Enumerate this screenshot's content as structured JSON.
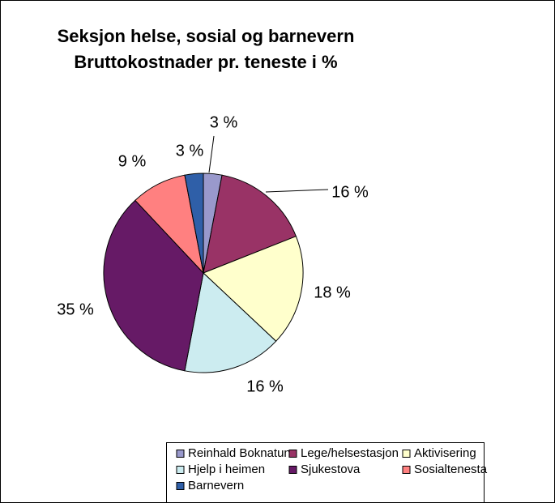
{
  "chart_data": {
    "type": "pie",
    "title": "Seksjon helse, sosial og barnevern",
    "subtitle": "Bruttokostnader pr. teneste i %",
    "categories": [
      "Reinhald Boknatun",
      "Lege/helsestasjon",
      "Aktivisering",
      "Hjelp i heimen",
      "Sjukestova",
      "Sosialtenesta",
      "Barnevern"
    ],
    "values": [
      3,
      16,
      18,
      16,
      35,
      9,
      3
    ],
    "value_labels": [
      "3 %",
      "16 %",
      "18 %",
      "16 %",
      "35 %",
      "9 %",
      "3 %"
    ],
    "colors": [
      "#9999cc",
      "#993366",
      "#ffffcc",
      "#ccecf0",
      "#661a66",
      "#ff8080",
      "#2f5fa8"
    ]
  }
}
